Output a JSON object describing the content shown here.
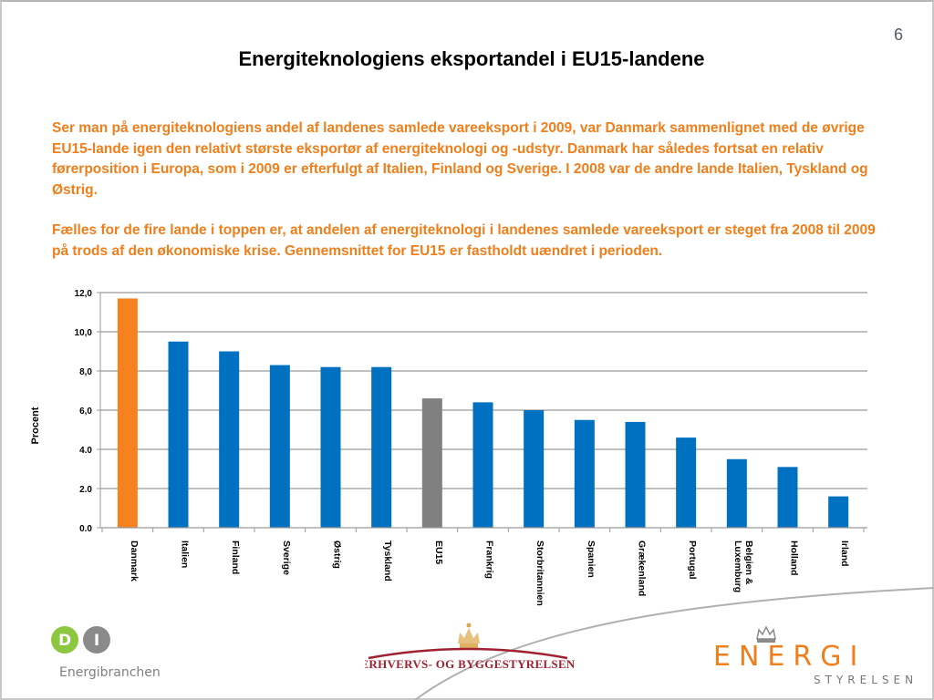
{
  "slide": {
    "page_number": "6",
    "title": "Energiteknologiens eksportandel i EU15-landene",
    "paragraphs": [
      "Ser man på energiteknologiens andel af landenes samlede vareeksport i 2009, var Danmark sammenlignet med de øvrige EU15-lande igen den relativt største eksportør af energiteknologi og -udstyr. Danmark har således fortsat en relativ førerposition i Europa, som i 2009 er efterfulgt af Italien, Finland og Sverige.  I 2008 var de andre lande Italien, Tyskland og Østrig.",
      "Fælles for de fire lande i toppen er, at andelen af energiteknologi i landenes samlede vareeksport  er steget fra 2008 til 2009 på trods af den økonomiske krise. Gennemsnittet for EU15 er fastholdt uændret i perioden."
    ],
    "text_color": "#f07f1b"
  },
  "chart_data": {
    "type": "bar",
    "title": "",
    "xlabel": "",
    "ylabel": "Procent",
    "ylim": [
      0,
      12
    ],
    "yticks": [
      "0.0",
      "2.0",
      "4.0",
      "6,0",
      "8,0",
      "10,0",
      "12,0"
    ],
    "ytick_values": [
      0,
      2,
      4,
      6,
      8,
      10,
      12
    ],
    "grid": true,
    "legend": "none",
    "categories": [
      "Danmark",
      "Italien",
      "Finland",
      "Sverige",
      "Østrig",
      "Tyskland",
      "EU15",
      "Frankrig",
      "Storbritannien",
      "Spanien",
      "Grækenland",
      "Portugal",
      "Belgien & Luxemburg",
      "Holland",
      "Irland"
    ],
    "category_lines": [
      [
        "Danmark"
      ],
      [
        "Italien"
      ],
      [
        "Finland"
      ],
      [
        "Sverige"
      ],
      [
        "Østrig"
      ],
      [
        "Tyskland"
      ],
      [
        "EU15"
      ],
      [
        "Frankrig"
      ],
      [
        "Storbritannien"
      ],
      [
        "Spanien"
      ],
      [
        "Grækenland"
      ],
      [
        "Portugal"
      ],
      [
        "Belgien &",
        "Luxemburg"
      ],
      [
        "Holland"
      ],
      [
        "Irland"
      ]
    ],
    "values": [
      11.7,
      9.5,
      9.0,
      8.3,
      8.2,
      8.2,
      6.6,
      6.4,
      6.0,
      5.5,
      5.4,
      4.6,
      3.5,
      3.1,
      1.6
    ],
    "colors": [
      "#f5821f",
      "#0070c0",
      "#0070c0",
      "#0070c0",
      "#0070c0",
      "#0070c0",
      "#808080",
      "#0070c0",
      "#0070c0",
      "#0070c0",
      "#0070c0",
      "#0070c0",
      "#0070c0",
      "#0070c0",
      "#0070c0"
    ]
  },
  "logos": {
    "di": {
      "letters": [
        "D",
        "I"
      ],
      "name": "Energibranchen",
      "green": "#8dc63f",
      "gray": "#8a8a8a"
    },
    "ebst": {
      "name": "Erhvervs- og Byggestyrelsen",
      "color": "#a02232",
      "crown_color": "#e0b060"
    },
    "ens": {
      "name_top": "ENERGI",
      "name_bottom": "STYRELSEN",
      "orange": "#f07f1b",
      "gray": "#777777"
    }
  }
}
